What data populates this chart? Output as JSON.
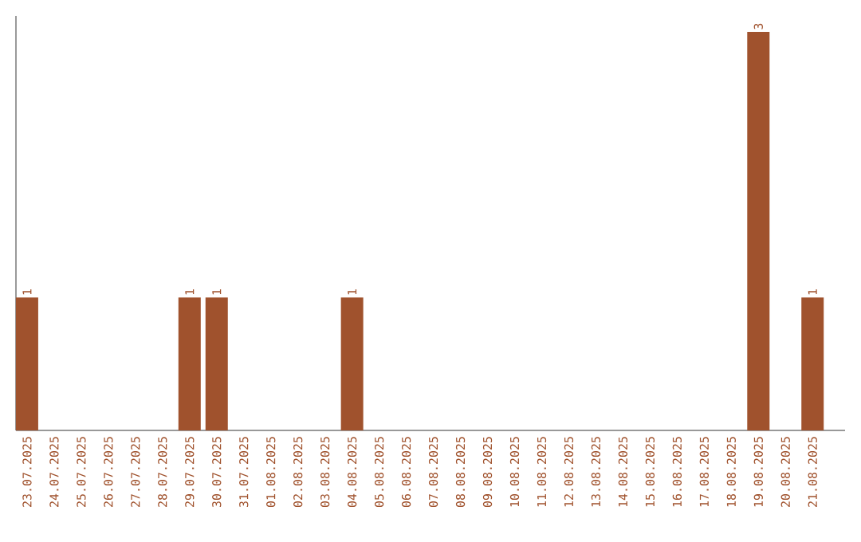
{
  "chart_data": {
    "type": "bar",
    "categories": [
      "23.07.2025",
      "24.07.2025",
      "25.07.2025",
      "26.07.2025",
      "27.07.2025",
      "28.07.2025",
      "29.07.2025",
      "30.07.2025",
      "31.07.2025",
      "01.08.2025",
      "02.08.2025",
      "03.08.2025",
      "04.08.2025",
      "05.08.2025",
      "06.08.2025",
      "07.08.2025",
      "08.08.2025",
      "09.08.2025",
      "10.08.2025",
      "11.08.2025",
      "12.08.2025",
      "13.08.2025",
      "14.08.2025",
      "15.08.2025",
      "16.08.2025",
      "17.08.2025",
      "18.08.2025",
      "19.08.2025",
      "20.08.2025",
      "21.08.2025"
    ],
    "values": [
      1,
      0,
      0,
      0,
      0,
      0,
      1,
      1,
      0,
      0,
      0,
      0,
      1,
      0,
      0,
      0,
      0,
      0,
      0,
      0,
      0,
      0,
      0,
      0,
      0,
      0,
      0,
      3,
      0,
      1
    ],
    "value_labels": [
      "1",
      null,
      null,
      null,
      null,
      null,
      "1",
      "1",
      null,
      null,
      null,
      null,
      "1",
      null,
      null,
      null,
      null,
      null,
      null,
      null,
      null,
      null,
      null,
      null,
      null,
      null,
      null,
      "3",
      null,
      "1"
    ],
    "color": "#a0522d",
    "ylim": [
      0,
      3
    ],
    "tick_labels": "x",
    "grid": false
  }
}
